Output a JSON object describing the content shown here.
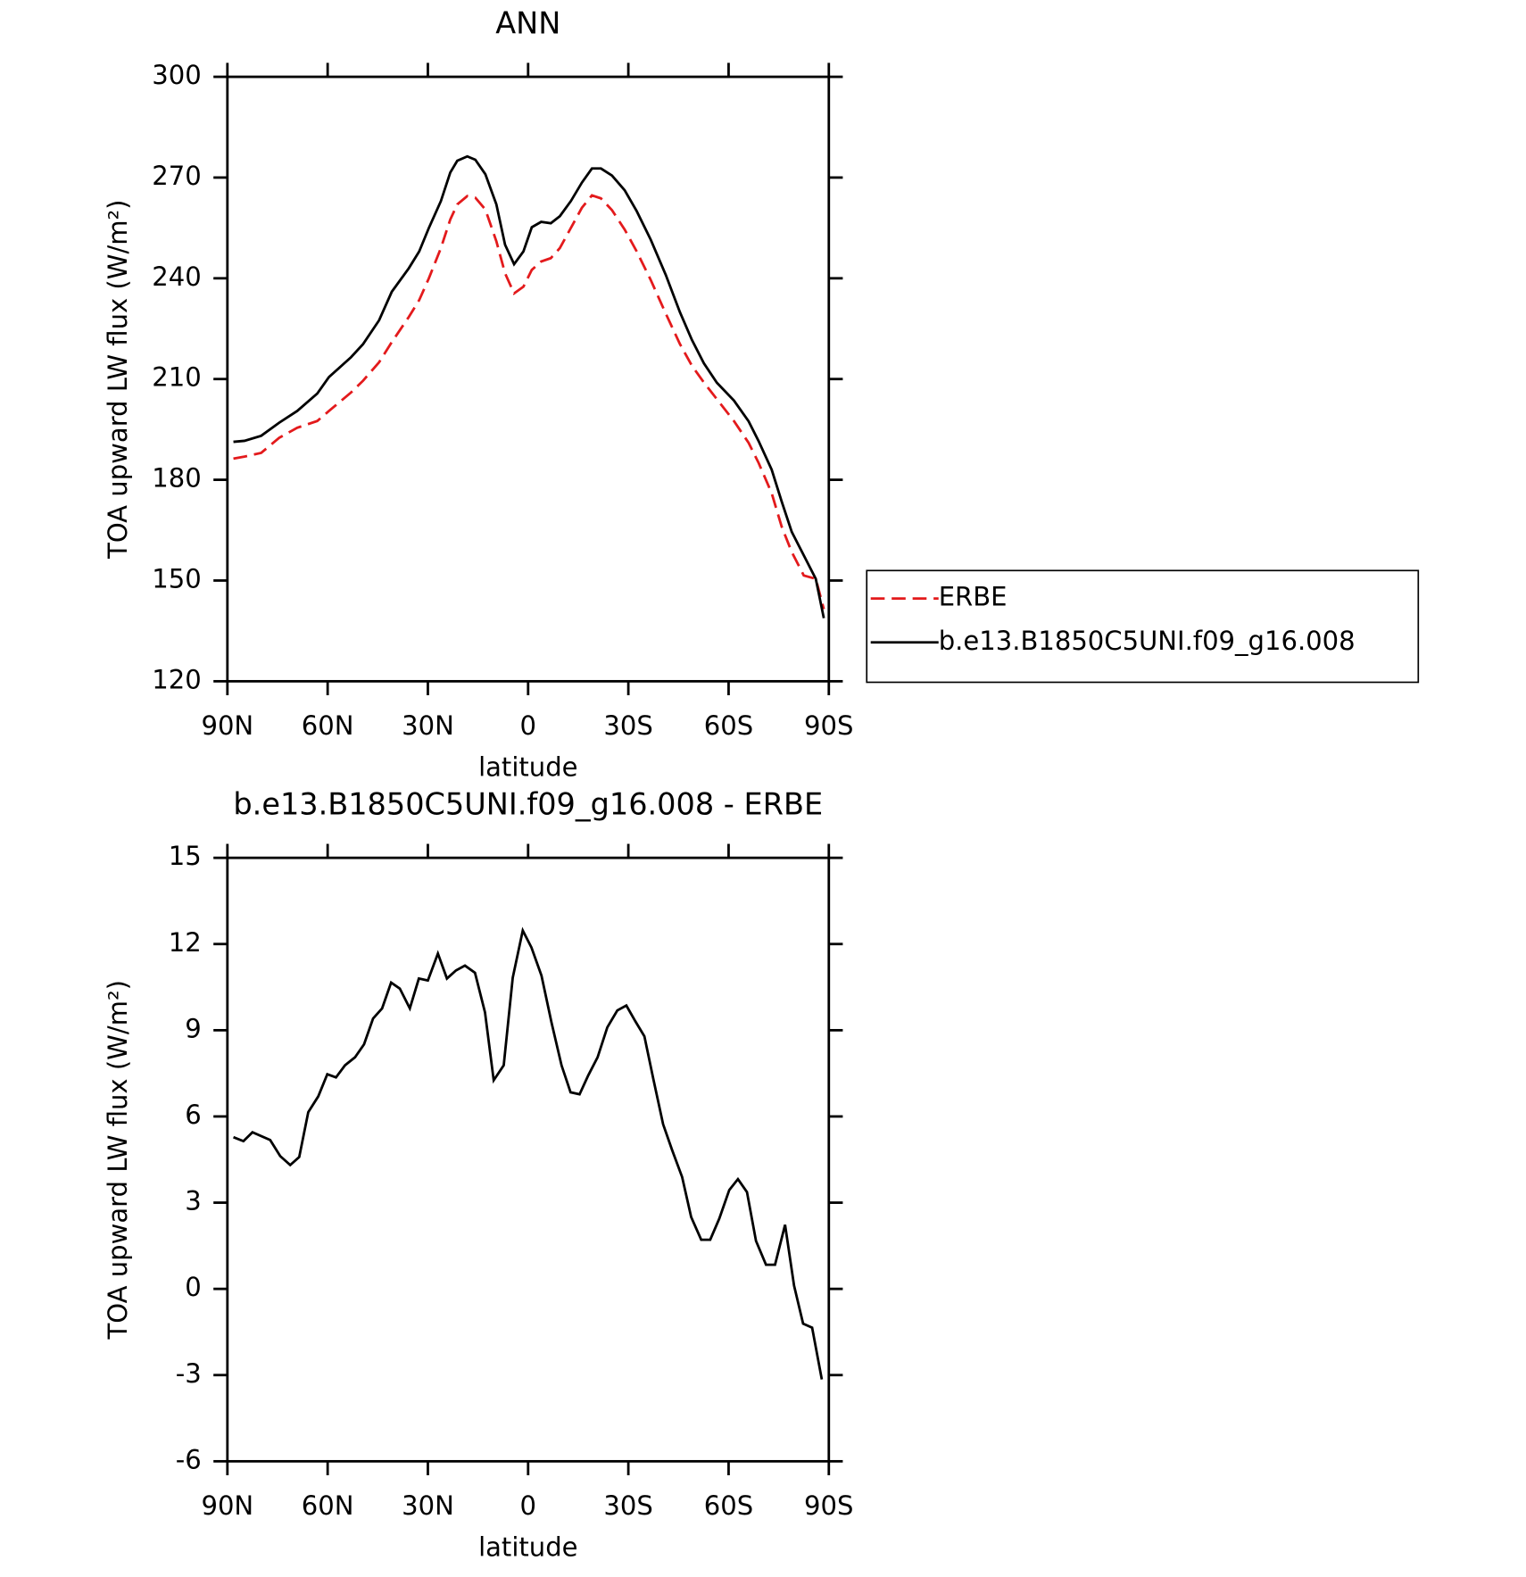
{
  "chart_data": [
    {
      "type": "line",
      "title": "ANN",
      "xlabel": "latitude",
      "ylabel": "TOA upward LW flux (W/m²)",
      "xlim": [
        90,
        -90
      ],
      "xticks": [
        {
          "value": 90,
          "label": "90N"
        },
        {
          "value": 60,
          "label": "60N"
        },
        {
          "value": 30,
          "label": "30N"
        },
        0,
        {
          "value": -30,
          "label": "30S"
        },
        {
          "value": -60,
          "label": "60S"
        },
        {
          "value": -90,
          "label": "90S"
        }
      ],
      "ylim": [
        120,
        300
      ],
      "yticks": [
        120,
        150,
        180,
        210,
        240,
        270,
        300
      ],
      "legend": "outside right",
      "x": [
        88.2,
        84.9,
        79.9,
        74.5,
        69.1,
        63.1,
        59.6,
        53.0,
        49.4,
        44.6,
        40.8,
        35.7,
        32.6,
        29.7,
        26.1,
        23.3,
        21.2,
        18.2,
        15.8,
        12.8,
        9.5,
        6.9,
        4.2,
        1.4,
        -1.1,
        -3.9,
        -6.8,
        -9.5,
        -12.8,
        -16.1,
        -19.1,
        -21.8,
        -25.1,
        -28.9,
        -32.5,
        -36.7,
        -41.2,
        -45.4,
        -49.0,
        -52.6,
        -56.5,
        -61.6,
        -66.0,
        -69.0,
        -72.9,
        -75.9,
        -78.9,
        -82.5,
        -86.1,
        -88.5
      ],
      "series": [
        {
          "name": "ERBE",
          "color": "#e31a1c",
          "dashed": true,
          "values": [
            186.3,
            186.9,
            188,
            192.5,
            195.5,
            197.5,
            200.5,
            206,
            209.5,
            215,
            221,
            228.5,
            233.5,
            240,
            249,
            257.5,
            262,
            264.5,
            264,
            260.5,
            251,
            241.5,
            235.5,
            237.5,
            242.5,
            245,
            246,
            249,
            255,
            261,
            264.7,
            263.8,
            260.3,
            254.5,
            248,
            239.5,
            229.5,
            220.5,
            214,
            209,
            204,
            197.5,
            191,
            185,
            176,
            166,
            158.5,
            151.5,
            150.5,
            141.5
          ]
        },
        {
          "name": "b.e13.B1850C5UNI.f09_g16.008",
          "color": "#000000",
          "dashed": false,
          "values": [
            191.3,
            191.6,
            193.1,
            197,
            200.5,
            205.7,
            210.6,
            216.5,
            220.4,
            227.5,
            236,
            243,
            248,
            255,
            263,
            271.5,
            275,
            276.3,
            275.3,
            271,
            262,
            250,
            244.2,
            248,
            255.2,
            256.8,
            256.4,
            258.5,
            263,
            268.5,
            272.7,
            272.7,
            270.6,
            266.2,
            260,
            251.5,
            241,
            230,
            221.7,
            214.7,
            208.9,
            203.6,
            197.4,
            191.5,
            183,
            173.5,
            164.5,
            157.5,
            150.5,
            138.8
          ]
        }
      ]
    },
    {
      "type": "line",
      "title": "b.e13.B1850C5UNI.f09_g16.008 - ERBE",
      "xlabel": "latitude",
      "ylabel": "TOA upward LW flux (W/m²)",
      "xlim": [
        90,
        -90
      ],
      "xticks": [
        {
          "value": 90,
          "label": "90N"
        },
        {
          "value": 60,
          "label": "60N"
        },
        {
          "value": 30,
          "label": "30N"
        },
        0,
        {
          "value": -30,
          "label": "30S"
        },
        {
          "value": -60,
          "label": "60S"
        },
        {
          "value": -90,
          "label": "90S"
        }
      ],
      "ylim": [
        -6,
        15
      ],
      "yticks": [
        -6,
        -3,
        0,
        3,
        6,
        9,
        12,
        15
      ],
      "color": "#000000",
      "x": [
        88.2,
        85.2,
        82.5,
        77.2,
        74.2,
        71.2,
        68.5,
        65.8,
        62.8,
        60.1,
        57.5,
        54.8,
        51.8,
        49.1,
        46.4,
        43.7,
        41.0,
        38.4,
        35.4,
        32.7,
        30.0,
        27.0,
        24.3,
        21.6,
        18.9,
        15.9,
        12.9,
        10.3,
        7.3,
        4.6,
        1.6,
        -1.0,
        -4.0,
        -7.0,
        -10.0,
        -12.7,
        -15.4,
        -18.0,
        -20.8,
        -23.7,
        -26.7,
        -29.4,
        -32.1,
        -34.8,
        -37.5,
        -40.4,
        -43.1,
        -46.1,
        -48.8,
        -51.8,
        -54.5,
        -57.2,
        -60.2,
        -62.8,
        -65.5,
        -68.2,
        -71.2,
        -73.9,
        -76.9,
        -79.6,
        -82.3,
        -85.0,
        -87.9
      ],
      "values": [
        5.28,
        5.14,
        5.45,
        5.18,
        4.62,
        4.31,
        4.59,
        6.15,
        6.7,
        7.47,
        7.36,
        7.78,
        8.06,
        8.51,
        9.41,
        9.76,
        10.66,
        10.45,
        9.76,
        10.8,
        10.73,
        11.67,
        10.8,
        11.08,
        11.25,
        11.0,
        9.62,
        7.26,
        7.78,
        10.83,
        12.47,
        11.88,
        10.9,
        9.27,
        7.78,
        6.84,
        6.77,
        7.43,
        8.06,
        9.1,
        9.69,
        9.86,
        9.31,
        8.79,
        7.29,
        5.73,
        4.83,
        3.89,
        2.5,
        1.71,
        1.71,
        2.44,
        3.44,
        3.82,
        3.37,
        1.67,
        0.84,
        0.84,
        2.23,
        0.11,
        -1.21,
        -1.35,
        -3.15
      ]
    }
  ]
}
